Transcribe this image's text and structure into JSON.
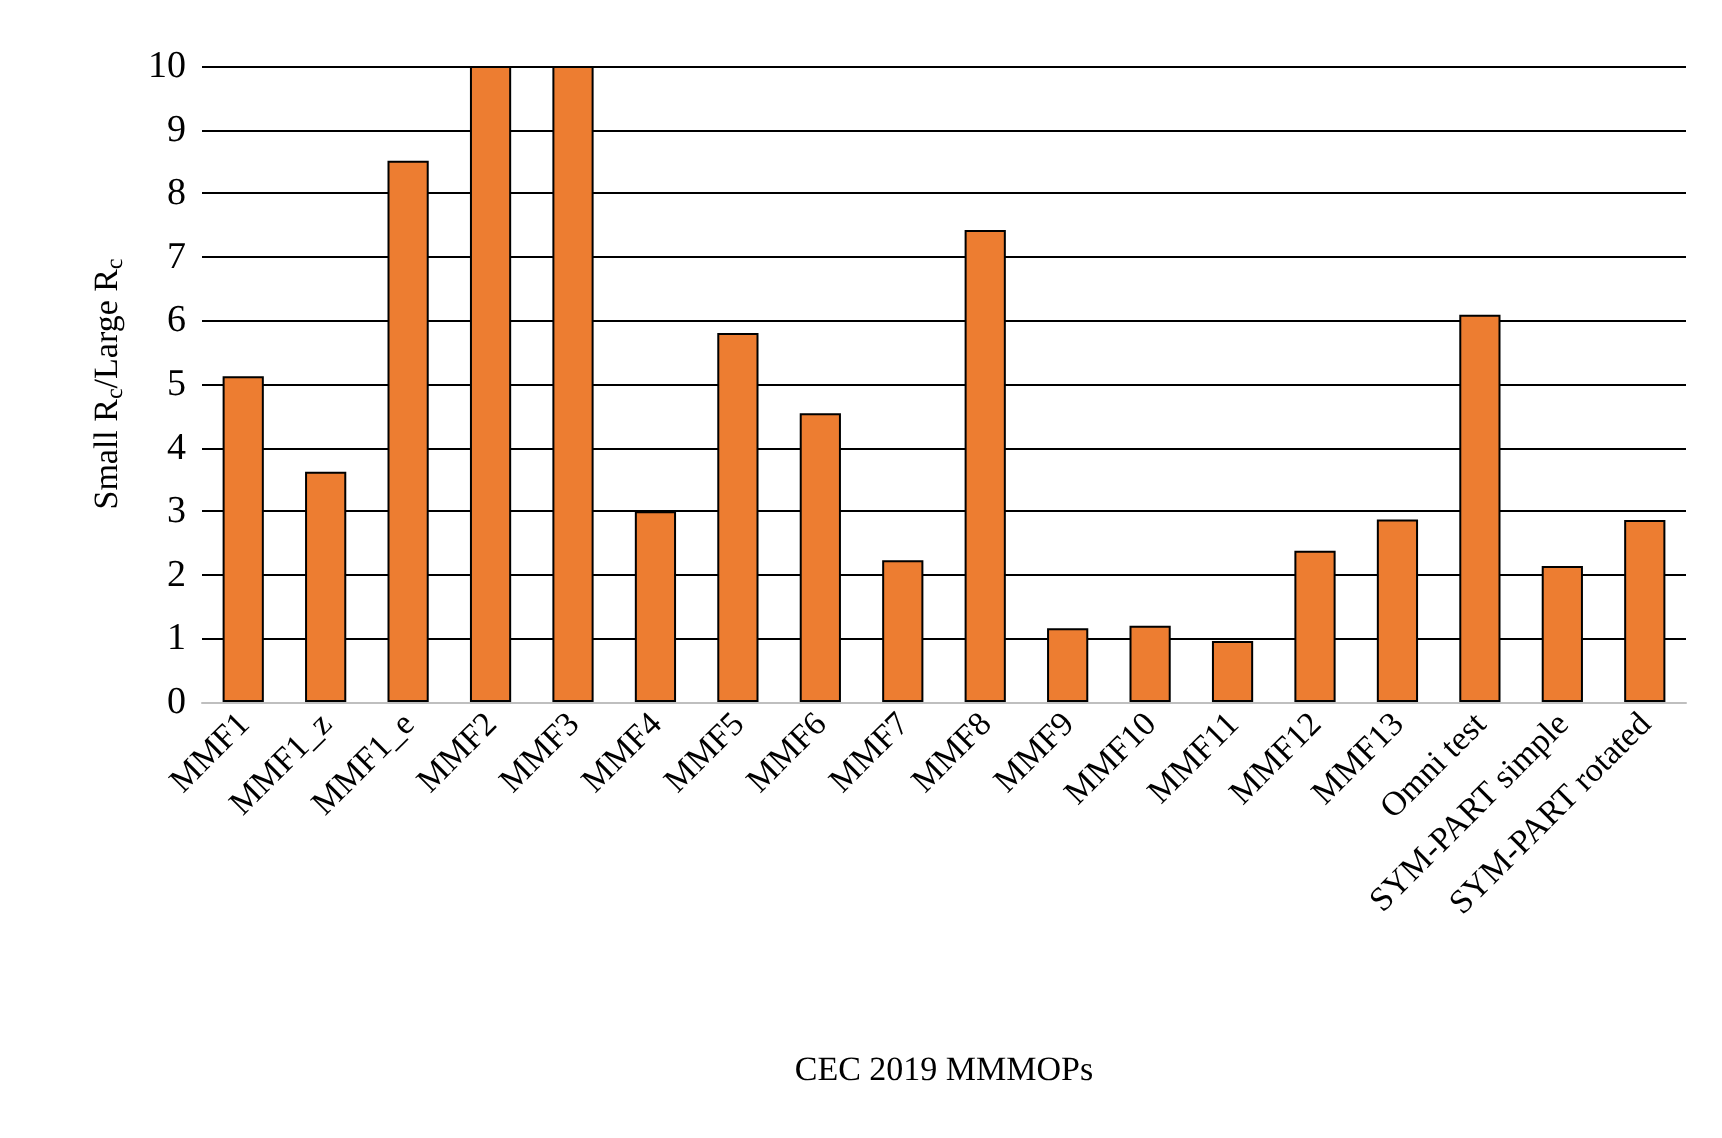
{
  "chart_data": {
    "type": "bar",
    "xlabel": "CEC 2019 MMMOPs",
    "ylabel": "Small R$_{c}$/Large R$_{c}$",
    "categories": [
      "MMF1",
      "MMF1_z",
      "MMF1_e",
      "MMF2",
      "MMF3",
      "MMF4",
      "MMF5",
      "MMF6",
      "MMF7",
      "MMF8",
      "MMF9",
      "MMF10",
      "MMF11",
      "MMF12",
      "MMF13",
      "Omni test",
      "SYM-PART simple",
      "SYM-PART rotated"
    ],
    "values": [
      5.12,
      3.62,
      8.51,
      10,
      10,
      3.0,
      5.8,
      4.54,
      2.23,
      7.42,
      1.16,
      1.2,
      0.96,
      2.38,
      2.87,
      6.09,
      2.14,
      2.86
    ],
    "color": "#ed7d31",
    "ylim": [
      0,
      10
    ],
    "yticks": [
      0,
      1,
      2,
      3,
      4,
      5,
      6,
      7,
      8,
      9,
      10
    ],
    "grid": "y"
  }
}
